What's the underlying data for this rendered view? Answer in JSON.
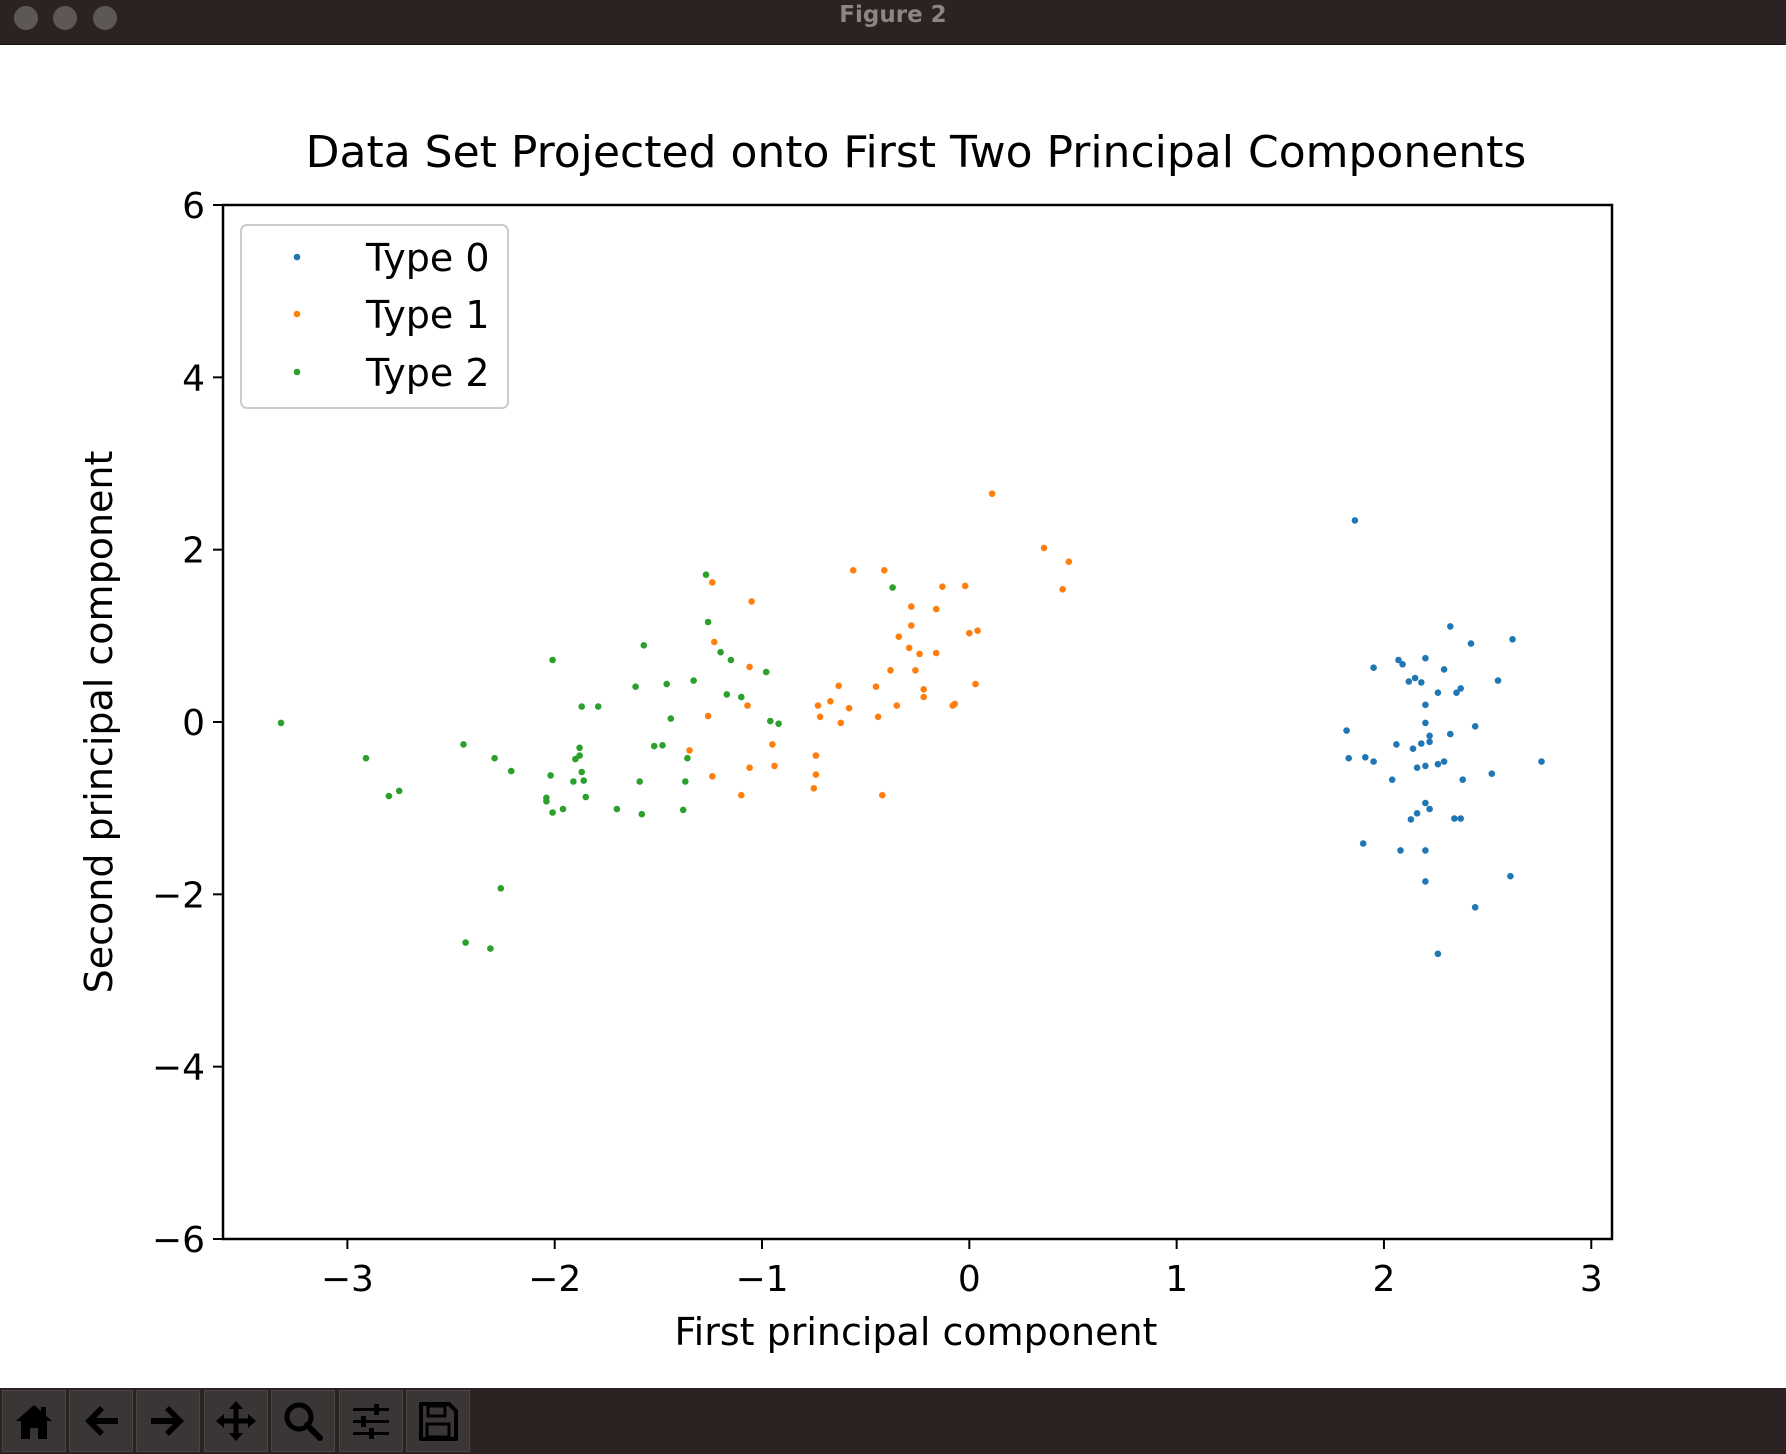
{
  "window": {
    "title": "Figure 2"
  },
  "toolbar": {
    "buttons": [
      {
        "name": "home-button",
        "icon": "home-icon"
      },
      {
        "name": "back-button",
        "icon": "arrow-left-icon"
      },
      {
        "name": "forward-button",
        "icon": "arrow-right-icon"
      },
      {
        "name": "pan-button",
        "icon": "move-icon"
      },
      {
        "name": "zoom-button",
        "icon": "magnifier-icon"
      },
      {
        "name": "configure-subplots-button",
        "icon": "sliders-icon"
      },
      {
        "name": "save-button",
        "icon": "floppy-disk-icon"
      }
    ]
  },
  "colors": {
    "type0": "#1f77b4",
    "type1": "#ff7f0e",
    "type2": "#2ca02c"
  },
  "chart_data": {
    "type": "scatter",
    "title": "Data Set Projected onto First Two Principal Components",
    "xlabel": "First principal component",
    "ylabel": "Second principal component",
    "xlim": [
      -3.6,
      3.1
    ],
    "ylim": [
      -6,
      6
    ],
    "xticks": [
      -3,
      -2,
      -1,
      0,
      1,
      2,
      3
    ],
    "xtick_labels": [
      "−3",
      "−2",
      "−1",
      "0",
      "1",
      "2",
      "3"
    ],
    "yticks": [
      -6,
      -4,
      -2,
      0,
      2,
      4,
      6
    ],
    "ytick_labels": [
      "−6",
      "−4",
      "−2",
      "0",
      "2",
      "4",
      "6"
    ],
    "grid": false,
    "legend_position": "upper left",
    "series": [
      {
        "name": "Type 0",
        "color": "#1f77b4",
        "points": [
          [
            1.86,
            2.34
          ],
          [
            2.32,
            1.11
          ],
          [
            2.62,
            0.96
          ],
          [
            2.42,
            0.91
          ],
          [
            2.2,
            0.74
          ],
          [
            2.07,
            0.72
          ],
          [
            2.09,
            0.67
          ],
          [
            1.95,
            0.63
          ],
          [
            2.29,
            0.61
          ],
          [
            2.15,
            0.51
          ],
          [
            2.12,
            0.47
          ],
          [
            2.18,
            0.46
          ],
          [
            2.55,
            0.48
          ],
          [
            2.37,
            0.39
          ],
          [
            2.35,
            0.34
          ],
          [
            2.26,
            0.34
          ],
          [
            2.2,
            0.2
          ],
          [
            2.2,
            -0.01
          ],
          [
            2.44,
            -0.05
          ],
          [
            1.82,
            -0.1
          ],
          [
            2.32,
            -0.14
          ],
          [
            2.22,
            -0.16
          ],
          [
            2.22,
            -0.23
          ],
          [
            2.18,
            -0.25
          ],
          [
            2.06,
            -0.26
          ],
          [
            2.14,
            -0.31
          ],
          [
            1.83,
            -0.42
          ],
          [
            1.91,
            -0.41
          ],
          [
            1.95,
            -0.46
          ],
          [
            2.29,
            -0.46
          ],
          [
            2.26,
            -0.49
          ],
          [
            2.2,
            -0.51
          ],
          [
            2.16,
            -0.53
          ],
          [
            2.76,
            -0.46
          ],
          [
            2.52,
            -0.6
          ],
          [
            2.04,
            -0.67
          ],
          [
            2.38,
            -0.67
          ],
          [
            2.2,
            -0.94
          ],
          [
            2.22,
            -1.01
          ],
          [
            2.16,
            -1.06
          ],
          [
            2.13,
            -1.13
          ],
          [
            2.34,
            -1.12
          ],
          [
            2.37,
            -1.12
          ],
          [
            1.9,
            -1.41
          ],
          [
            2.08,
            -1.49
          ],
          [
            2.2,
            -1.49
          ],
          [
            2.61,
            -1.79
          ],
          [
            2.2,
            -1.85
          ],
          [
            2.44,
            -2.15
          ],
          [
            2.26,
            -2.69
          ]
        ]
      },
      {
        "name": "Type 1",
        "color": "#ff7f0e",
        "points": [
          [
            0.11,
            2.65
          ],
          [
            0.36,
            2.02
          ],
          [
            0.48,
            1.86
          ],
          [
            0.45,
            1.54
          ],
          [
            -0.56,
            1.76
          ],
          [
            -0.41,
            1.76
          ],
          [
            -0.13,
            1.57
          ],
          [
            -0.02,
            1.58
          ],
          [
            -1.24,
            1.62
          ],
          [
            -1.05,
            1.4
          ],
          [
            -0.28,
            1.34
          ],
          [
            -0.16,
            1.31
          ],
          [
            -0.28,
            1.12
          ],
          [
            0.04,
            1.06
          ],
          [
            0.0,
            1.03
          ],
          [
            -0.34,
            0.99
          ],
          [
            -0.29,
            0.86
          ],
          [
            -0.24,
            0.79
          ],
          [
            -0.16,
            0.8
          ],
          [
            -1.23,
            0.93
          ],
          [
            -1.06,
            0.64
          ],
          [
            -0.26,
            0.6
          ],
          [
            -0.38,
            0.6
          ],
          [
            0.03,
            0.44
          ],
          [
            -0.63,
            0.42
          ],
          [
            -0.45,
            0.41
          ],
          [
            -0.22,
            0.38
          ],
          [
            -0.22,
            0.29
          ],
          [
            -0.08,
            0.19
          ],
          [
            -0.07,
            0.21
          ],
          [
            -0.35,
            0.19
          ],
          [
            -0.73,
            0.19
          ],
          [
            -0.67,
            0.24
          ],
          [
            -0.58,
            0.16
          ],
          [
            -1.07,
            0.19
          ],
          [
            -0.72,
            0.06
          ],
          [
            -0.44,
            0.06
          ],
          [
            -1.26,
            0.07
          ],
          [
            -0.62,
            -0.01
          ],
          [
            -1.35,
            -0.33
          ],
          [
            -0.95,
            -0.26
          ],
          [
            -0.74,
            -0.39
          ],
          [
            -1.06,
            -0.53
          ],
          [
            -0.94,
            -0.51
          ],
          [
            -0.74,
            -0.61
          ],
          [
            -1.24,
            -0.63
          ],
          [
            -0.75,
            -0.77
          ],
          [
            -1.1,
            -0.85
          ],
          [
            -0.42,
            -0.85
          ]
        ]
      },
      {
        "name": "Type 2",
        "color": "#2ca02c",
        "points": [
          [
            -1.27,
            1.71
          ],
          [
            -0.37,
            1.56
          ],
          [
            -1.26,
            1.16
          ],
          [
            -1.57,
            0.89
          ],
          [
            -1.2,
            0.81
          ],
          [
            -1.15,
            0.72
          ],
          [
            -2.01,
            0.72
          ],
          [
            -0.98,
            0.58
          ],
          [
            -1.46,
            0.44
          ],
          [
            -1.33,
            0.48
          ],
          [
            -1.61,
            0.41
          ],
          [
            -1.17,
            0.32
          ],
          [
            -1.1,
            0.29
          ],
          [
            -1.87,
            0.18
          ],
          [
            -1.79,
            0.18
          ],
          [
            -1.44,
            0.04
          ],
          [
            -0.96,
            0.01
          ],
          [
            -0.92,
            -0.02
          ],
          [
            -3.32,
            -0.01
          ],
          [
            -2.91,
            -0.42
          ],
          [
            -2.44,
            -0.26
          ],
          [
            -1.88,
            -0.3
          ],
          [
            -1.52,
            -0.28
          ],
          [
            -1.48,
            -0.27
          ],
          [
            -1.88,
            -0.39
          ],
          [
            -1.9,
            -0.43
          ],
          [
            -2.29,
            -0.42
          ],
          [
            -1.36,
            -0.42
          ],
          [
            -2.21,
            -0.57
          ],
          [
            -2.02,
            -0.62
          ],
          [
            -1.87,
            -0.58
          ],
          [
            -1.91,
            -0.69
          ],
          [
            -1.59,
            -0.69
          ],
          [
            -1.86,
            -0.68
          ],
          [
            -1.37,
            -0.69
          ],
          [
            -2.75,
            -0.8
          ],
          [
            -2.8,
            -0.86
          ],
          [
            -2.04,
            -0.88
          ],
          [
            -2.04,
            -0.92
          ],
          [
            -1.85,
            -0.87
          ],
          [
            -1.96,
            -1.01
          ],
          [
            -2.01,
            -1.05
          ],
          [
            -1.7,
            -1.01
          ],
          [
            -1.38,
            -1.02
          ],
          [
            -1.58,
            -1.07
          ],
          [
            -2.26,
            -1.93
          ],
          [
            -2.43,
            -2.56
          ],
          [
            -2.31,
            -2.63
          ]
        ]
      }
    ]
  }
}
